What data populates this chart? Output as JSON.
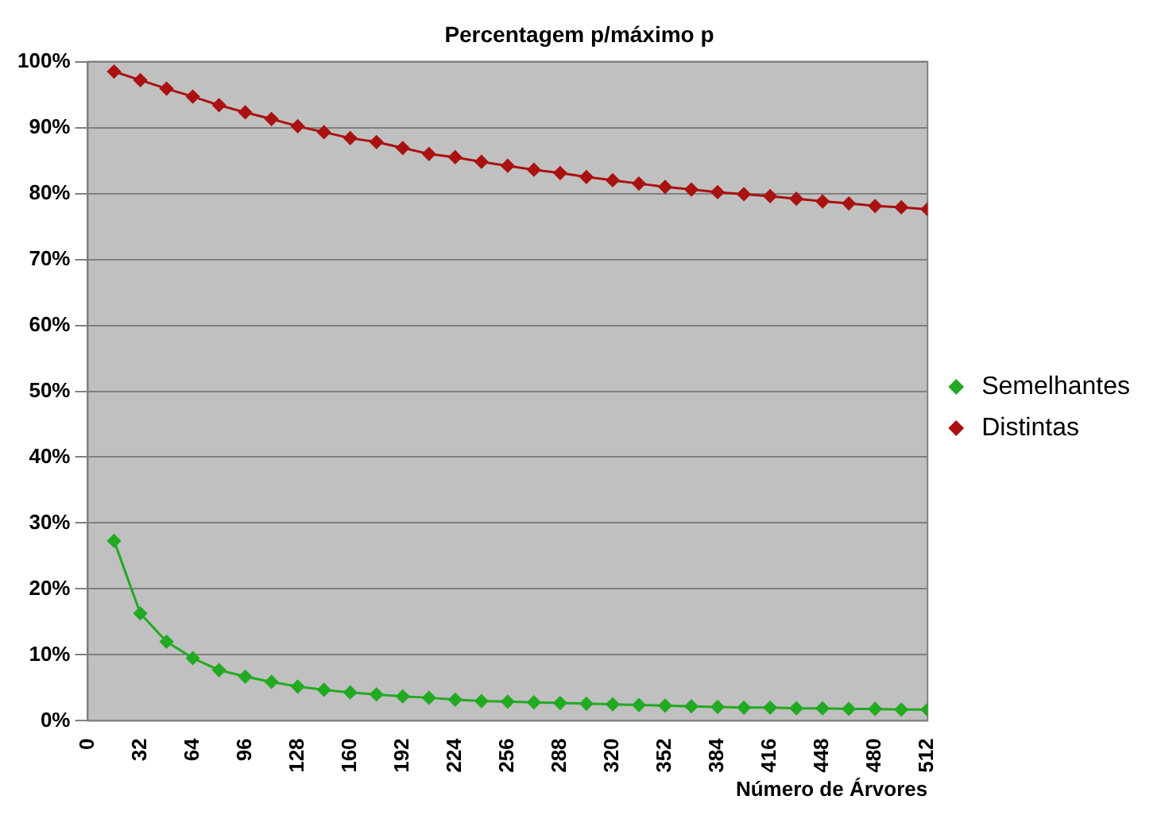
{
  "chart_data": {
    "type": "line",
    "title": "Percentagem p/máximo p",
    "xlabel": "Número de Árvores",
    "x": [
      16,
      32,
      48,
      64,
      80,
      96,
      112,
      128,
      144,
      160,
      176,
      192,
      208,
      224,
      240,
      256,
      272,
      288,
      304,
      320,
      336,
      352,
      368,
      384,
      400,
      416,
      432,
      448,
      464,
      480,
      496,
      512
    ],
    "series": [
      {
        "name": "Semelhantes",
        "color": "#22aa22",
        "values": [
          27.3,
          16.3,
          12.0,
          9.5,
          7.7,
          6.7,
          5.9,
          5.2,
          4.7,
          4.3,
          4.0,
          3.7,
          3.5,
          3.2,
          3.0,
          2.9,
          2.8,
          2.7,
          2.6,
          2.5,
          2.4,
          2.3,
          2.2,
          2.1,
          2.0,
          2.0,
          1.9,
          1.9,
          1.8,
          1.8,
          1.7,
          1.7
        ]
      },
      {
        "name": "Distintas",
        "color": "#aa1111",
        "values": [
          98.5,
          97.2,
          95.9,
          94.7,
          93.4,
          92.3,
          91.3,
          90.2,
          89.3,
          88.4,
          87.8,
          86.9,
          86.0,
          85.5,
          84.8,
          84.2,
          83.6,
          83.1,
          82.5,
          82.0,
          81.5,
          81.0,
          80.6,
          80.2,
          79.9,
          79.6,
          79.2,
          78.8,
          78.5,
          78.1,
          77.9,
          77.6
        ]
      }
    ],
    "xlim": [
      0,
      512
    ],
    "xticks": [
      0,
      32,
      64,
      96,
      128,
      160,
      192,
      224,
      256,
      288,
      320,
      352,
      384,
      416,
      448,
      480,
      512
    ],
    "ylim": [
      0,
      100
    ],
    "yticks": [
      {
        "value": 0,
        "label": "0%"
      },
      {
        "value": 10,
        "label": "10%"
      },
      {
        "value": 20,
        "label": "20%"
      },
      {
        "value": 30,
        "label": "30%"
      },
      {
        "value": 40,
        "label": "40%"
      },
      {
        "value": 50,
        "label": "50%"
      },
      {
        "value": 60,
        "label": "60%"
      },
      {
        "value": 70,
        "label": "70%"
      },
      {
        "value": 80,
        "label": "80%"
      },
      {
        "value": 90,
        "label": "90%"
      },
      {
        "value": 100,
        "label": "100%"
      }
    ],
    "grid": "y",
    "legend": "right",
    "marker": "diamond",
    "line_style": "solid"
  }
}
